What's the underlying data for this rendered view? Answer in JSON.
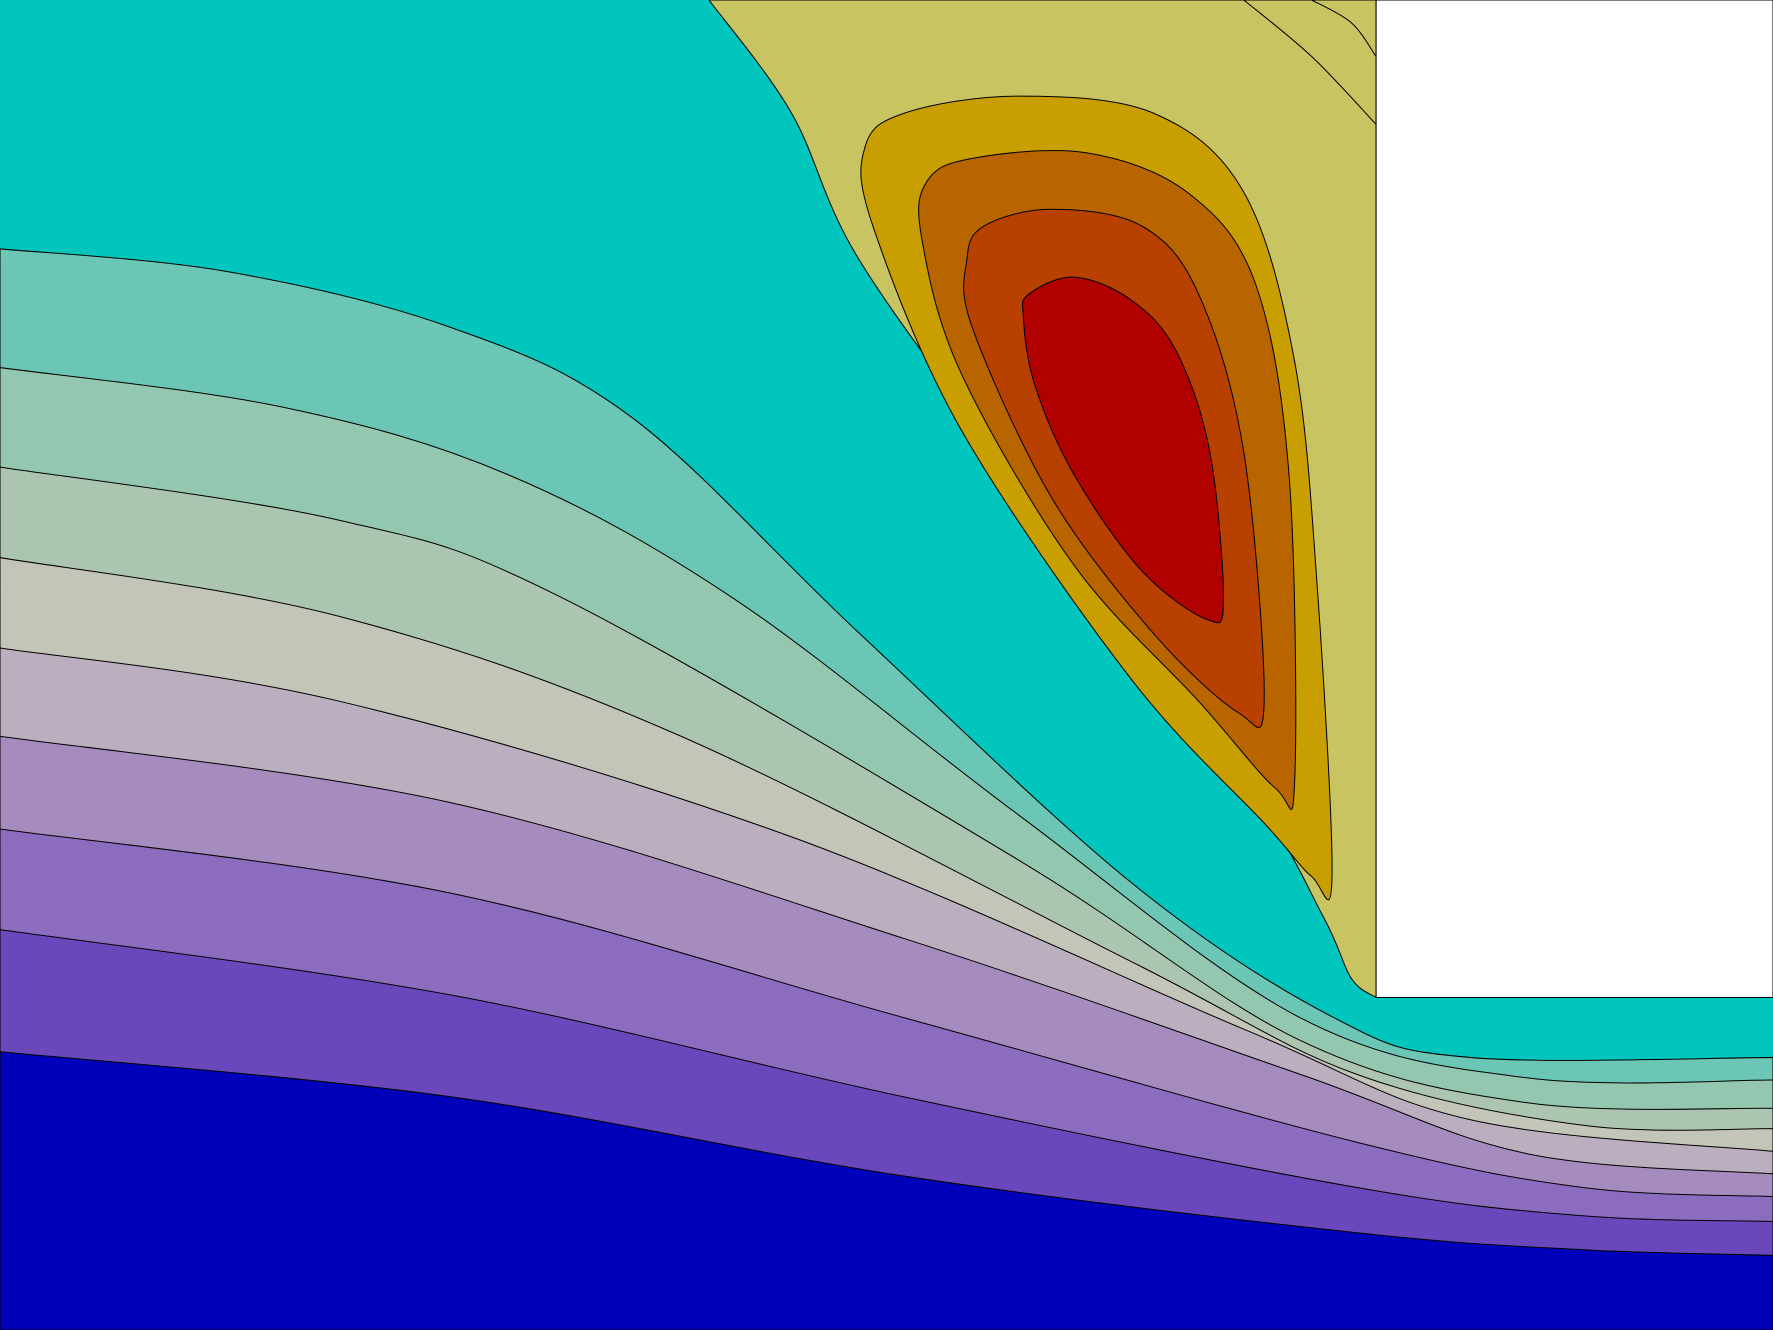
{
  "chart_data": {
    "type": "contour",
    "title": "",
    "xlabel": "",
    "ylabel": "",
    "grid": false,
    "legend": "none",
    "filled": true,
    "contour_lines": true,
    "background_color": "#ffffff",
    "lower_region_colors": [
      "#00c6be",
      "#6bc6b5",
      "#93c7b0",
      "#abc5b0",
      "#c3c5b8",
      "#bbafbf",
      "#a68cbe",
      "#8b6cbf",
      "#6a48bc",
      "#0000bb"
    ],
    "upper_region_colors": [
      "#c8c462",
      "#c89e00",
      "#b86500",
      "#b84000",
      "#b00000"
    ]
  }
}
